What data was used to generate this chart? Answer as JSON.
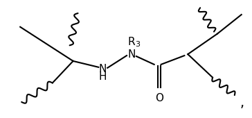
{
  "background_color": "#ffffff",
  "fig_width": 3.64,
  "fig_height": 1.7,
  "dpi": 100,
  "nh_n_label": "N",
  "nh_h_label": "H",
  "n_label": "N",
  "r3_r_label": "R",
  "r3_3_label": "3",
  "o_label": "O",
  "comma": ",",
  "line_color": "#000000",
  "font_size": 11,
  "lw": 1.5
}
